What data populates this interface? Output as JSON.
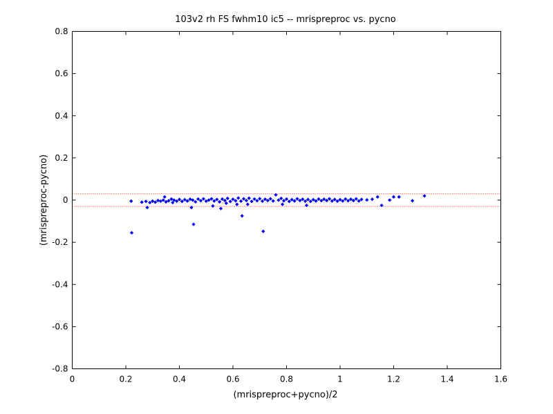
{
  "chart_data": {
    "type": "scatter",
    "title": "103v2 rh FS fwhm10 ic5 -- mrispreproc vs. pycno",
    "xlabel": "(mrispreproc+pycno)/2",
    "ylabel": "(mrispreproc-pycno)",
    "xlim": [
      0,
      1.6
    ],
    "ylim": [
      -0.8,
      0.8
    ],
    "x_ticks": [
      "0",
      "0.2",
      "0.4",
      "0.6",
      "0.8",
      "1",
      "1.2",
      "1.4",
      "1.6"
    ],
    "y_ticks": [
      "-0.8",
      "-0.6",
      "-0.4",
      "-0.2",
      "0",
      "0.2",
      "0.4",
      "0.6",
      "0.8"
    ],
    "grid": false,
    "reference_lines": [
      0.03,
      -0.03
    ],
    "colors": {
      "points": "#0000ff",
      "reference_lines": "#ff0000",
      "axes": "#000000"
    },
    "series": [
      {
        "points": [
          [
            0.222,
            -0.155
          ],
          [
            0.453,
            -0.115
          ],
          [
            0.634,
            -0.075
          ],
          [
            0.713,
            -0.148
          ],
          [
            0.22,
            -0.005
          ],
          [
            0.26,
            -0.01
          ],
          [
            0.275,
            -0.006
          ],
          [
            0.28,
            -0.035
          ],
          [
            0.29,
            -0.012
          ],
          [
            0.3,
            -0.005
          ],
          [
            0.31,
            -0.01
          ],
          [
            0.32,
            -0.002
          ],
          [
            0.33,
            -0.005
          ],
          [
            0.34,
            0.0
          ],
          [
            0.345,
            0.015
          ],
          [
            0.35,
            -0.008
          ],
          [
            0.36,
            -0.003
          ],
          [
            0.37,
            0.005
          ],
          [
            0.375,
            -0.012
          ],
          [
            0.38,
            0.0
          ],
          [
            0.39,
            -0.005
          ],
          [
            0.4,
            0.003
          ],
          [
            0.41,
            -0.006
          ],
          [
            0.42,
            0.002
          ],
          [
            0.43,
            -0.004
          ],
          [
            0.44,
            0.004
          ],
          [
            0.445,
            -0.035
          ],
          [
            0.45,
            0.0
          ],
          [
            0.46,
            -0.008
          ],
          [
            0.47,
            0.005
          ],
          [
            0.48,
            -0.003
          ],
          [
            0.49,
            0.006
          ],
          [
            0.5,
            -0.005
          ],
          [
            0.51,
            0.0
          ],
          [
            0.52,
            0.006
          ],
          [
            0.525,
            -0.028
          ],
          [
            0.53,
            -0.004
          ],
          [
            0.54,
            0.003
          ],
          [
            0.55,
            -0.008
          ],
          [
            0.555,
            -0.04
          ],
          [
            0.56,
            0.005
          ],
          [
            0.57,
            -0.002
          ],
          [
            0.575,
            -0.015
          ],
          [
            0.58,
            0.008
          ],
          [
            0.59,
            -0.006
          ],
          [
            0.6,
            0.004
          ],
          [
            0.61,
            -0.003
          ],
          [
            0.615,
            -0.02
          ],
          [
            0.62,
            0.01
          ],
          [
            0.63,
            -0.005
          ],
          [
            0.64,
            0.006
          ],
          [
            0.65,
            -0.002
          ],
          [
            0.655,
            -0.02
          ],
          [
            0.66,
            0.009
          ],
          [
            0.67,
            -0.006
          ],
          [
            0.68,
            0.005
          ],
          [
            0.69,
            -0.003
          ],
          [
            0.7,
            0.007
          ],
          [
            0.71,
            -0.005
          ],
          [
            0.72,
            0.004
          ],
          [
            0.73,
            -0.002
          ],
          [
            0.74,
            0.006
          ],
          [
            0.75,
            -0.004
          ],
          [
            0.76,
            0.025
          ],
          [
            0.77,
            0.0
          ],
          [
            0.78,
            0.008
          ],
          [
            0.785,
            -0.02
          ],
          [
            0.79,
            -0.003
          ],
          [
            0.8,
            0.005
          ],
          [
            0.81,
            -0.006
          ],
          [
            0.82,
            0.002
          ],
          [
            0.83,
            -0.004
          ],
          [
            0.84,
            0.006
          ],
          [
            0.85,
            -0.002
          ],
          [
            0.86,
            0.004
          ],
          [
            0.87,
            -0.005
          ],
          [
            0.875,
            -0.025
          ],
          [
            0.88,
            0.003
          ],
          [
            0.89,
            -0.006
          ],
          [
            0.9,
            0.002
          ],
          [
            0.91,
            -0.004
          ],
          [
            0.92,
            0.005
          ],
          [
            0.93,
            -0.003
          ],
          [
            0.94,
            0.004
          ],
          [
            0.95,
            -0.002
          ],
          [
            0.96,
            0.006
          ],
          [
            0.97,
            -0.004
          ],
          [
            0.98,
            0.003
          ],
          [
            0.99,
            -0.005
          ],
          [
            1.0,
            0.002
          ],
          [
            1.01,
            -0.004
          ],
          [
            1.02,
            0.005
          ],
          [
            1.03,
            -0.003
          ],
          [
            1.04,
            0.004
          ],
          [
            1.05,
            -0.002
          ],
          [
            1.06,
            0.006
          ],
          [
            1.07,
            -0.004
          ],
          [
            1.08,
            0.003
          ],
          [
            1.1,
            0.001
          ],
          [
            1.12,
            0.004
          ],
          [
            1.14,
            0.015
          ],
          [
            1.155,
            -0.025
          ],
          [
            1.185,
            0.0
          ],
          [
            1.2,
            0.015
          ],
          [
            1.22,
            0.015
          ],
          [
            1.27,
            -0.003
          ],
          [
            1.315,
            0.02
          ]
        ]
      }
    ]
  }
}
